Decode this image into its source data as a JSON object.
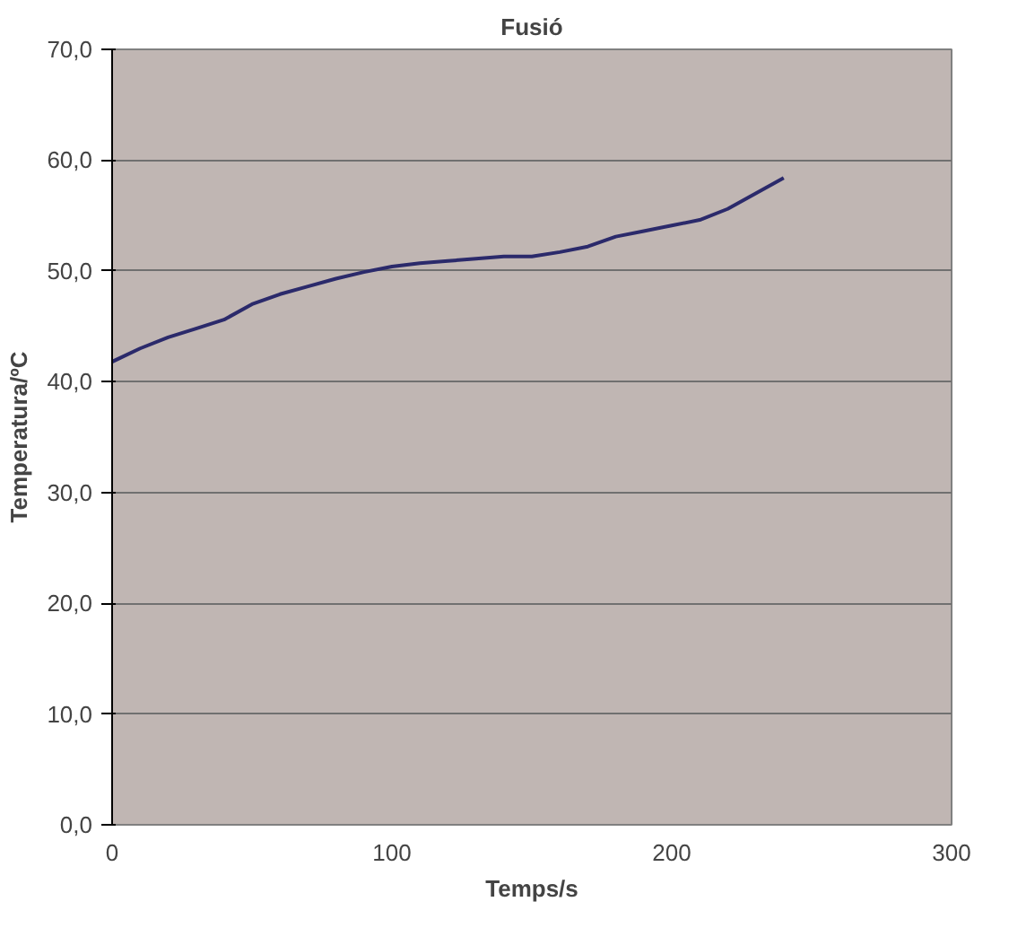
{
  "chart_data": {
    "type": "line",
    "title": "Fusió",
    "xlabel": "Temps/s",
    "ylabel": "Temperatura/ºC",
    "x": [
      0,
      10,
      20,
      30,
      40,
      50,
      60,
      70,
      80,
      90,
      100,
      110,
      120,
      130,
      140,
      150,
      160,
      170,
      180,
      190,
      200,
      210,
      220,
      230,
      240
    ],
    "series": [
      {
        "color": "#2b2a6b",
        "values": [
          41.8,
          43.0,
          44.0,
          44.8,
          45.6,
          47.0,
          47.9,
          48.6,
          49.3,
          49.9,
          50.4,
          50.7,
          50.9,
          51.1,
          51.3,
          51.3,
          51.7,
          52.2,
          53.1,
          53.6,
          54.1,
          54.6,
          55.6,
          57.0,
          58.4
        ]
      }
    ],
    "xlim": [
      0,
      300
    ],
    "xticks": [
      0,
      100,
      200,
      300
    ],
    "ylim": [
      0,
      70
    ],
    "yticks": [
      {
        "value": 0,
        "label": "0,0"
      },
      {
        "value": 10,
        "label": "10,0"
      },
      {
        "value": 20,
        "label": "20,0"
      },
      {
        "value": 30,
        "label": "30,0"
      },
      {
        "value": 40,
        "label": "40,0"
      },
      {
        "value": 50,
        "label": "50,0"
      },
      {
        "value": 60,
        "label": "60,0"
      },
      {
        "value": 70,
        "label": "70,0"
      }
    ],
    "grid": "y",
    "marker": "none",
    "line_style": "solid"
  }
}
